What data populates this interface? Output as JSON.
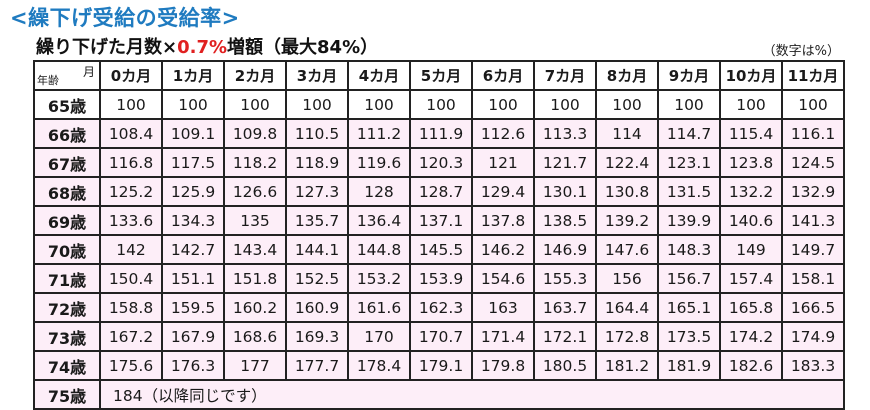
{
  "title": "<繰下げ受給の受給率>",
  "subtitle": {
    "prefix": "繰り下げた月数×",
    "rate": "0.7%",
    "suffix": "増額（最大84%）"
  },
  "unit_note": "（数字は%）",
  "table": {
    "corner_month_label": "月",
    "corner_age_label": "年齢",
    "columns": [
      "0カ月",
      "1カ月",
      "2カ月",
      "3カ月",
      "4カ月",
      "5カ月",
      "6カ月",
      "7カ月",
      "8カ月",
      "9カ月",
      "10カ月",
      "11カ月"
    ],
    "rows": [
      {
        "age": "65歳",
        "values": [
          "100",
          "100",
          "100",
          "100",
          "100",
          "100",
          "100",
          "100",
          "100",
          "100",
          "100",
          "100"
        ]
      },
      {
        "age": "66歳",
        "values": [
          "108.4",
          "109.1",
          "109.8",
          "110.5",
          "111.2",
          "111.9",
          "112.6",
          "113.3",
          "114",
          "114.7",
          "115.4",
          "116.1"
        ]
      },
      {
        "age": "67歳",
        "values": [
          "116.8",
          "117.5",
          "118.2",
          "118.9",
          "119.6",
          "120.3",
          "121",
          "121.7",
          "122.4",
          "123.1",
          "123.8",
          "124.5"
        ]
      },
      {
        "age": "68歳",
        "values": [
          "125.2",
          "125.9",
          "126.6",
          "127.3",
          "128",
          "128.7",
          "129.4",
          "130.1",
          "130.8",
          "131.5",
          "132.2",
          "132.9"
        ]
      },
      {
        "age": "69歳",
        "values": [
          "133.6",
          "134.3",
          "135",
          "135.7",
          "136.4",
          "137.1",
          "137.8",
          "138.5",
          "139.2",
          "139.9",
          "140.6",
          "141.3"
        ]
      },
      {
        "age": "70歳",
        "values": [
          "142",
          "142.7",
          "143.4",
          "144.1",
          "144.8",
          "145.5",
          "146.2",
          "146.9",
          "147.6",
          "148.3",
          "149",
          "149.7"
        ]
      },
      {
        "age": "71歳",
        "values": [
          "150.4",
          "151.1",
          "151.8",
          "152.5",
          "153.2",
          "153.9",
          "154.6",
          "155.3",
          "156",
          "156.7",
          "157.4",
          "158.1"
        ]
      },
      {
        "age": "72歳",
        "values": [
          "158.8",
          "159.5",
          "160.2",
          "160.9",
          "161.6",
          "162.3",
          "163",
          "163.7",
          "164.4",
          "165.1",
          "165.8",
          "166.5"
        ]
      },
      {
        "age": "73歳",
        "values": [
          "167.2",
          "167.9",
          "168.6",
          "169.3",
          "170",
          "170.7",
          "171.4",
          "172.1",
          "172.8",
          "173.5",
          "174.2",
          "174.9"
        ]
      },
      {
        "age": "74歳",
        "values": [
          "175.6",
          "176.3",
          "177",
          "177.7",
          "178.4",
          "179.1",
          "179.8",
          "180.5",
          "181.2",
          "181.9",
          "182.6",
          "183.3"
        ]
      }
    ],
    "last_row": {
      "age": "75歳",
      "note": "184（以降同じです）"
    }
  },
  "colors": {
    "title": "#1f7bc0",
    "highlight": "#e02020",
    "row_fill": "#fdeef8",
    "border": "#222222"
  }
}
